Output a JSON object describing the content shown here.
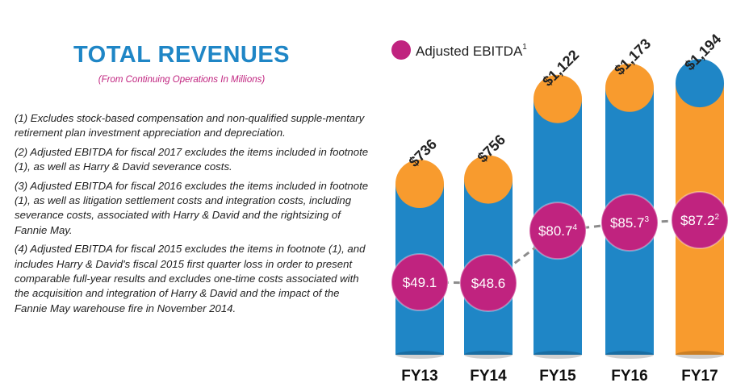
{
  "header": {
    "title": "TOTAL REVENUES",
    "subtitle": "(From Continuing Operations In Millions)"
  },
  "footnotes": [
    "(1) Excludes stock-based compensation and non-qualified supple-mentary retirement plan investment appreciation and depreciation.",
    "(2) Adjusted EBITDA for fiscal 2017 excludes the items included in footnote (1), as well as Harry & David severance costs.",
    "(3) Adjusted EBITDA for fiscal 2016 excludes the items included in footnote (1), as well as litigation settlement costs and integration costs, including severance costs, associated with Harry & David and the rightsizing of Fannie May.",
    "(4) Adjusted EBITDA for fiscal 2015 excludes the items in footnote (1), and includes Harry & David's fiscal 2015 first quarter loss in order to present comparable full-year results and excludes one-time costs associated with the acquisition and integration of Harry & David and the impact of the Fannie May warehouse fire in November 2014."
  ],
  "chart_data": {
    "type": "bar",
    "categories": [
      "FY13",
      "FY14",
      "FY15",
      "FY16",
      "FY17"
    ],
    "series": [
      {
        "name": "Total Revenues",
        "values": [
          736,
          756,
          1122,
          1173,
          1194
        ],
        "labels": [
          "$736",
          "$756",
          "$1,122",
          "$1,173",
          "$1,194"
        ]
      },
      {
        "name": "Adjusted EBITDA",
        "legend_label": "Adjusted EBITDA",
        "legend_superscript": "1",
        "values": [
          49.1,
          48.6,
          80.7,
          85.7,
          87.2
        ],
        "labels": [
          "$49.1",
          "$48.6",
          "$80.7",
          "$85.7",
          "$87.2"
        ],
        "superscripts": [
          "",
          "",
          "4",
          "3",
          "2"
        ]
      }
    ],
    "highlight_category": "FY17",
    "colors": {
      "bar": "#1f86c6",
      "bar_highlight": "#f89b2e",
      "cap": "#f89b2e",
      "cap_highlight": "#1f86c6",
      "ebitda_marker": "#c0237f",
      "ebitda_line": "#8c8c8c",
      "title": "#1f86c6",
      "subtitle": "#c0237f"
    }
  }
}
